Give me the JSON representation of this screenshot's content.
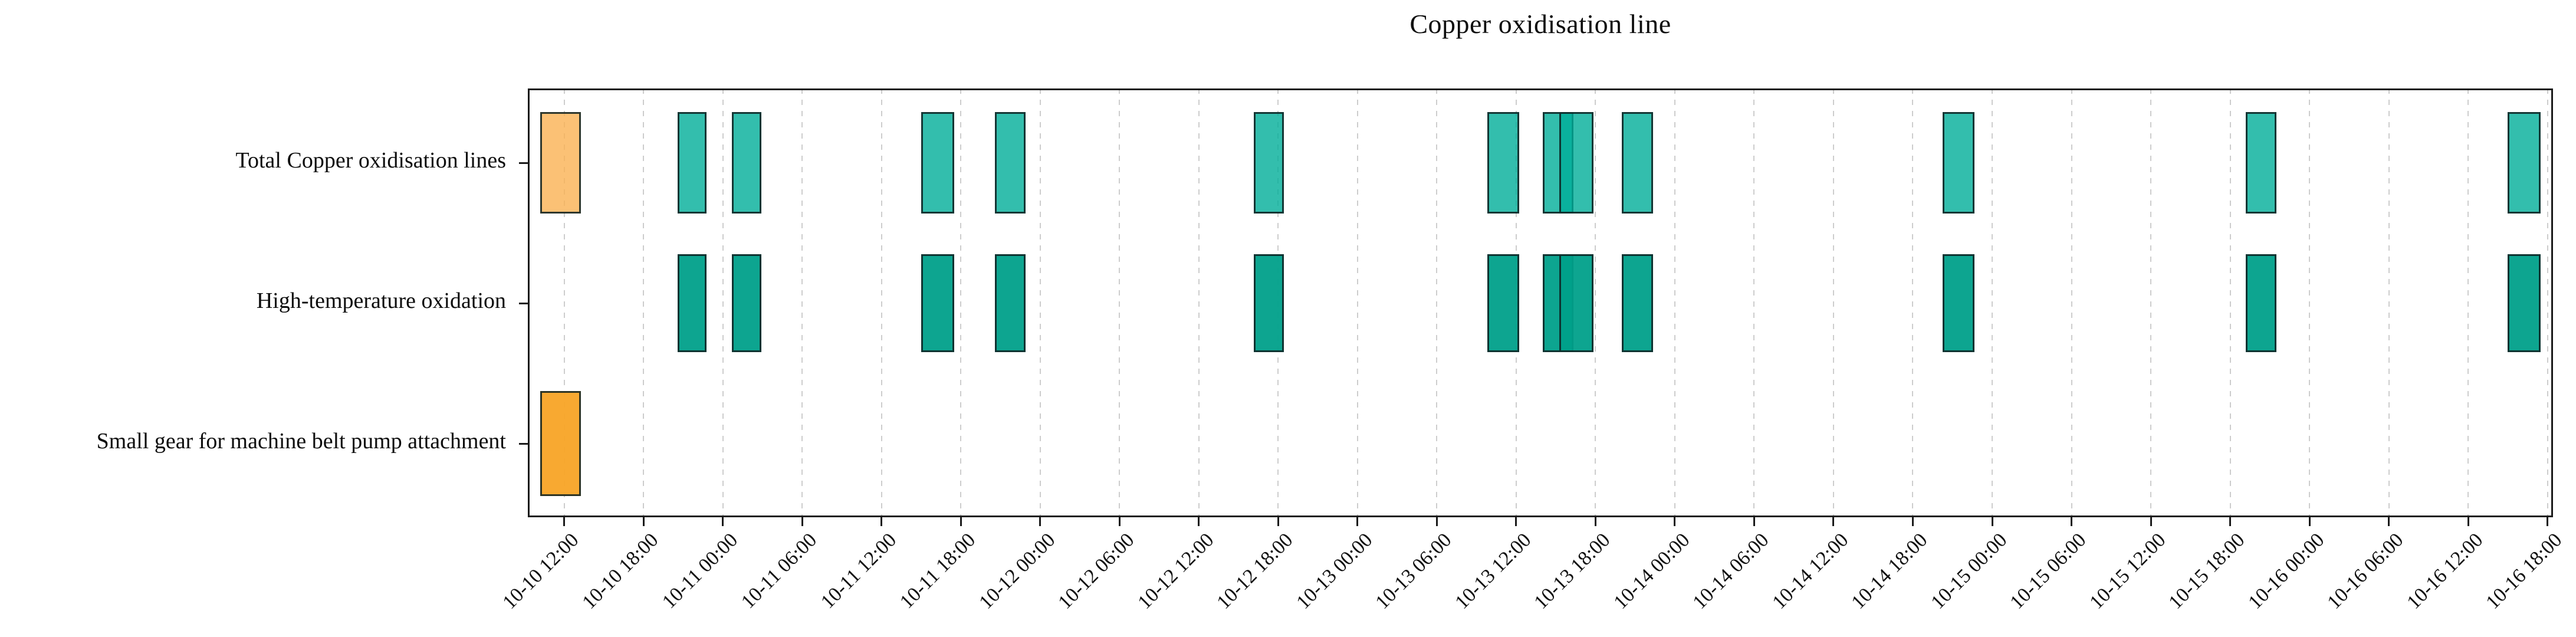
{
  "chart_data": {
    "type": "gantt",
    "title": "Copper oxidisation line",
    "xlabel": "",
    "ylabel": "",
    "grid": {
      "vertical_dashed": true,
      "color": "#cdcdcd"
    },
    "axis_color": "#1a1a1a",
    "xlim": {
      "start": "10-10 09:15",
      "end": "10-16 18:25"
    },
    "x_ticks": [
      "10-10 12:00",
      "10-10 18:00",
      "10-11 00:00",
      "10-11 06:00",
      "10-11 12:00",
      "10-11 18:00",
      "10-12 00:00",
      "10-12 06:00",
      "10-12 12:00",
      "10-12 18:00",
      "10-13 00:00",
      "10-13 06:00",
      "10-13 12:00",
      "10-13 18:00",
      "10-14 00:00",
      "10-14 06:00",
      "10-14 12:00",
      "10-14 18:00",
      "10-15 00:00",
      "10-15 06:00",
      "10-15 12:00",
      "10-15 18:00",
      "10-16 00:00",
      "10-16 06:00",
      "10-16 12:00",
      "10-16 18:00"
    ],
    "rows": [
      {
        "label": "Total Copper oxidisation lines",
        "content": "all_tasks_overlay"
      },
      {
        "label": "High-temperature oxidation",
        "content": "teal_tasks"
      },
      {
        "label": "Small gear for machine belt pump attachment",
        "content": "orange_task"
      }
    ],
    "teal_tasks": [
      {
        "start": "10-10 20:35",
        "end": "10-10 22:45"
      },
      {
        "start": "10-11 00:40",
        "end": "10-11 02:55"
      },
      {
        "start": "10-11 15:00",
        "end": "10-11 17:30"
      },
      {
        "start": "10-11 20:35",
        "end": "10-11 22:55"
      },
      {
        "start": "10-12 16:10",
        "end": "10-12 18:25"
      },
      {
        "start": "10-13 09:50",
        "end": "10-13 12:15"
      },
      {
        "start": "10-13 14:00",
        "end": "10-13 16:20"
      },
      {
        "start": "10-13 15:15",
        "end": "10-13 17:50"
      },
      {
        "start": "10-13 20:00",
        "end": "10-13 22:20"
      },
      {
        "start": "10-14 20:15",
        "end": "10-14 22:40"
      },
      {
        "start": "10-15 19:10",
        "end": "10-15 21:30"
      },
      {
        "start": "10-16 15:00",
        "end": "10-16 17:30"
      }
    ],
    "orange_task": {
      "start": "10-10 10:10",
      "end": "10-10 13:15"
    },
    "colors": {
      "total_row_teal": "#00AE98",
      "total_row_orange": "#FAB153",
      "machine_row_teal": "#00A08A",
      "machine_row_orange": "#F8A426",
      "bar_edge": "#102323",
      "grid": "#cdcdcd",
      "axis": "#1a1a1a",
      "text": "#0d0d0d"
    }
  }
}
